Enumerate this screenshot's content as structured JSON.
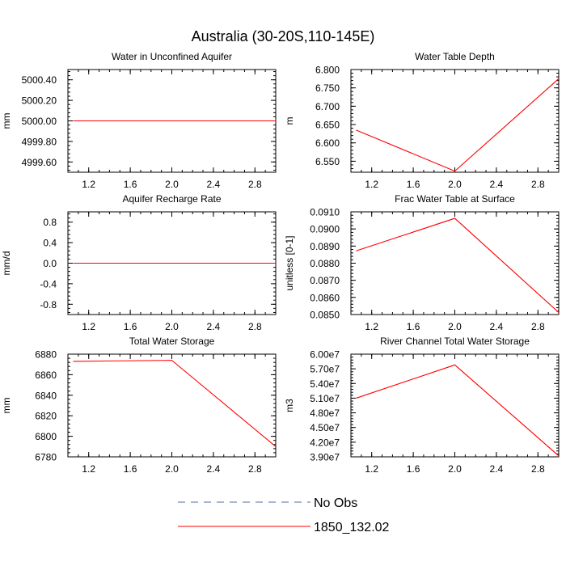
{
  "figure": {
    "title": "Australia (30-20S,110-145E)"
  },
  "legend": {
    "entries": [
      {
        "label": "No Obs",
        "color": "#5a6aa8",
        "style": "dashed"
      },
      {
        "label": "1850_132.02",
        "color": "#ff0000",
        "style": "solid"
      }
    ]
  },
  "chart_data": [
    {
      "type": "line",
      "title": "Water in Unconfined Aquifer",
      "xlabel": "",
      "ylabel": "mm",
      "xlim": [
        1,
        3
      ],
      "ylim": [
        4999.5,
        5000.5
      ],
      "xticks": [
        1.2,
        1.6,
        2.0,
        2.4,
        2.8
      ],
      "xtick_labels": [
        "1.2",
        "1.6",
        "2.0",
        "2.4",
        "2.8"
      ],
      "yticks": [
        4999.6,
        4999.8,
        5000.0,
        5000.2,
        5000.4
      ],
      "ytick_labels": [
        "4999.60",
        "4999.80",
        "5000.00",
        "5000.20",
        "5000.40"
      ],
      "series": [
        {
          "name": "1850_132.02",
          "color": "#ff0000",
          "x": [
            1.05,
            2.0,
            3.0
          ],
          "y": [
            5000.0,
            5000.0,
            5000.0
          ]
        }
      ]
    },
    {
      "type": "line",
      "title": "Water Table Depth",
      "xlabel": "",
      "ylabel": "m",
      "xlim": [
        1,
        3
      ],
      "ylim": [
        6.52,
        6.8
      ],
      "xticks": [
        1.2,
        1.6,
        2.0,
        2.4,
        2.8
      ],
      "xtick_labels": [
        "1.2",
        "1.6",
        "2.0",
        "2.4",
        "2.8"
      ],
      "yticks": [
        6.55,
        6.6,
        6.65,
        6.7,
        6.75,
        6.8
      ],
      "ytick_labels": [
        "6.550",
        "6.600",
        "6.650",
        "6.700",
        "6.750",
        "6.800"
      ],
      "series": [
        {
          "name": "1850_132.02",
          "color": "#ff0000",
          "x": [
            1.05,
            2.0,
            3.0
          ],
          "y": [
            6.635,
            6.523,
            6.775
          ]
        }
      ]
    },
    {
      "type": "line",
      "title": "Aquifer Recharge Rate",
      "xlabel": "",
      "ylabel": "mm/d",
      "xlim": [
        1,
        3
      ],
      "ylim": [
        -1.0,
        1.0
      ],
      "xticks": [
        1.2,
        1.6,
        2.0,
        2.4,
        2.8
      ],
      "xtick_labels": [
        "1.2",
        "1.6",
        "2.0",
        "2.4",
        "2.8"
      ],
      "yticks": [
        -0.8,
        -0.4,
        0.0,
        0.4,
        0.8
      ],
      "ytick_labels": [
        "-0.8",
        "-0.4",
        "0.0",
        "0.4",
        "0.8"
      ],
      "series": [
        {
          "name": "1850_132.02",
          "color": "#ff0000",
          "x": [
            1.05,
            2.0,
            3.0
          ],
          "y": [
            0.0,
            0.0,
            0.0
          ]
        }
      ]
    },
    {
      "type": "line",
      "title": "Frac Water Table at Surface",
      "xlabel": "",
      "ylabel": "unitless [0-1]",
      "xlim": [
        1,
        3
      ],
      "ylim": [
        0.085,
        0.091
      ],
      "xticks": [
        1.2,
        1.6,
        2.0,
        2.4,
        2.8
      ],
      "xtick_labels": [
        "1.2",
        "1.6",
        "2.0",
        "2.4",
        "2.8"
      ],
      "yticks": [
        0.085,
        0.086,
        0.087,
        0.088,
        0.089,
        0.09,
        0.091
      ],
      "ytick_labels": [
        "0.0850",
        "0.0860",
        "0.0870",
        "0.0880",
        "0.0890",
        "0.0900",
        "0.0910"
      ],
      "series": [
        {
          "name": "1850_132.02",
          "color": "#ff0000",
          "x": [
            1.05,
            2.0,
            3.0
          ],
          "y": [
            0.08872,
            0.09062,
            0.08512
          ]
        }
      ]
    },
    {
      "type": "line",
      "title": "Total Water Storage",
      "xlabel": "",
      "ylabel": "mm",
      "xlim": [
        1,
        3
      ],
      "ylim": [
        6780,
        6880
      ],
      "xticks": [
        1.2,
        1.6,
        2.0,
        2.4,
        2.8
      ],
      "xtick_labels": [
        "1.2",
        "1.6",
        "2.0",
        "2.4",
        "2.8"
      ],
      "yticks": [
        6780,
        6800,
        6820,
        6840,
        6860,
        6880
      ],
      "ytick_labels": [
        "6780",
        "6800",
        "6820",
        "6840",
        "6860",
        "6880"
      ],
      "series": [
        {
          "name": "1850_132.02",
          "color": "#ff0000",
          "x": [
            1.05,
            2.0,
            3.0
          ],
          "y": [
            6873,
            6874,
            6790
          ]
        }
      ]
    },
    {
      "type": "line",
      "title": "River Channel Total Water Storage",
      "xlabel": "",
      "ylabel": "m3",
      "xlim": [
        1,
        3
      ],
      "ylim": [
        39000000,
        60000000
      ],
      "xticks": [
        1.2,
        1.6,
        2.0,
        2.4,
        2.8
      ],
      "xtick_labels": [
        "1.2",
        "1.6",
        "2.0",
        "2.4",
        "2.8"
      ],
      "yticks": [
        39000000,
        42000000,
        45000000,
        48000000,
        51000000,
        54000000,
        57000000,
        60000000
      ],
      "ytick_labels": [
        "3.90e7",
        "4.20e7",
        "4.50e7",
        "4.80e7",
        "5.10e7",
        "5.40e7",
        "5.70e7",
        "6.00e7"
      ],
      "series": [
        {
          "name": "1850_132.02",
          "color": "#ff0000",
          "x": [
            1.05,
            2.0,
            3.0
          ],
          "y": [
            51000000,
            57800000,
            39200000
          ]
        }
      ]
    }
  ]
}
